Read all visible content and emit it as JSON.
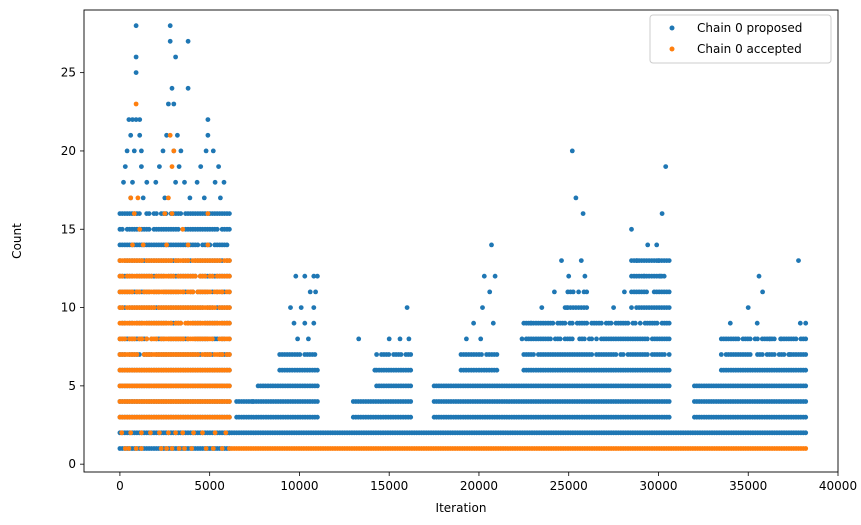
{
  "chart_data": {
    "type": "scatter",
    "xlabel": "Iteration",
    "ylabel": "Count",
    "xlim": [
      -2000,
      40000
    ],
    "ylim": [
      -0.5,
      29
    ],
    "x_ticks": [
      0,
      5000,
      10000,
      15000,
      20000,
      25000,
      30000,
      35000,
      40000
    ],
    "y_ticks": [
      0,
      5,
      10,
      15,
      20,
      25
    ],
    "grid": false,
    "legend_position": "top-right",
    "series": [
      {
        "name": "Chain 0 proposed",
        "color": "#1f77b4",
        "bands": [
          {
            "x_range": [
              0,
              6100
            ],
            "y_values": [
              1,
              2,
              3,
              4,
              5,
              6,
              7,
              8,
              9,
              10,
              11,
              12,
              13,
              14,
              15,
              16
            ]
          },
          {
            "x_range": [
              6100,
              38200
            ],
            "y_values": [
              2
            ]
          },
          {
            "x_range": [
              6500,
              11000
            ],
            "y_values": [
              3,
              4
            ]
          },
          {
            "x_range": [
              7700,
              11000
            ],
            "y_values": [
              5
            ]
          },
          {
            "x_range": [
              8900,
              11000
            ],
            "y_values": [
              6,
              7
            ]
          },
          {
            "x_range": [
              13000,
              16200
            ],
            "y_values": [
              3,
              4
            ]
          },
          {
            "x_range": [
              14300,
              16200
            ],
            "y_values": [
              5,
              6,
              7
            ]
          },
          {
            "x_range": [
              17500,
              30600
            ],
            "y_values": [
              3,
              4,
              5
            ]
          },
          {
            "x_range": [
              19000,
              21000
            ],
            "y_values": [
              6,
              7
            ]
          },
          {
            "x_range": [
              22500,
              30600
            ],
            "y_values": [
              6,
              7,
              8,
              9
            ]
          },
          {
            "x_range": [
              24800,
              26000
            ],
            "y_values": [
              10,
              11
            ]
          },
          {
            "x_range": [
              28500,
              30600
            ],
            "y_values": [
              10,
              11,
              12,
              13
            ]
          },
          {
            "x_range": [
              32000,
              38200
            ],
            "y_values": [
              3,
              4,
              5
            ]
          },
          {
            "x_range": [
              33500,
              38200
            ],
            "y_values": [
              6,
              7,
              8
            ]
          }
        ],
        "extra_points": [
          [
            900,
            28
          ],
          [
            2800,
            28
          ],
          [
            900,
            26
          ],
          [
            900,
            25
          ],
          [
            2800,
            27
          ],
          [
            3100,
            26
          ],
          [
            3800,
            27
          ],
          [
            3800,
            24
          ],
          [
            2900,
            24
          ],
          [
            3000,
            23
          ],
          [
            2700,
            23
          ],
          [
            500,
            22
          ],
          [
            700,
            22
          ],
          [
            900,
            22
          ],
          [
            1100,
            22
          ],
          [
            4900,
            22
          ],
          [
            2600,
            21
          ],
          [
            3200,
            21
          ],
          [
            4900,
            21
          ],
          [
            600,
            21
          ],
          [
            1100,
            21
          ],
          [
            400,
            20
          ],
          [
            800,
            20
          ],
          [
            1200,
            20
          ],
          [
            2400,
            20
          ],
          [
            3000,
            20
          ],
          [
            3400,
            20
          ],
          [
            4800,
            20
          ],
          [
            5200,
            20
          ],
          [
            300,
            19
          ],
          [
            1200,
            19
          ],
          [
            2200,
            19
          ],
          [
            3300,
            19
          ],
          [
            4500,
            19
          ],
          [
            5500,
            19
          ],
          [
            200,
            18
          ],
          [
            700,
            18
          ],
          [
            1500,
            18
          ],
          [
            2000,
            18
          ],
          [
            3100,
            18
          ],
          [
            3600,
            18
          ],
          [
            4300,
            18
          ],
          [
            5300,
            18
          ],
          [
            5800,
            18
          ],
          [
            600,
            17
          ],
          [
            1300,
            17
          ],
          [
            2500,
            17
          ],
          [
            3900,
            17
          ],
          [
            4700,
            17
          ],
          [
            5600,
            17
          ],
          [
            7400,
            4
          ],
          [
            9900,
            8
          ],
          [
            10500,
            8
          ],
          [
            9700,
            9
          ],
          [
            10300,
            9
          ],
          [
            10800,
            9
          ],
          [
            9500,
            10
          ],
          [
            10100,
            10
          ],
          [
            10800,
            10
          ],
          [
            10600,
            11
          ],
          [
            10900,
            11
          ],
          [
            9800,
            12
          ],
          [
            10300,
            12
          ],
          [
            10800,
            12
          ],
          [
            11000,
            12
          ],
          [
            13300,
            8
          ],
          [
            14200,
            6
          ],
          [
            15000,
            8
          ],
          [
            15600,
            8
          ],
          [
            16000,
            10
          ],
          [
            16100,
            8
          ],
          [
            19300,
            8
          ],
          [
            19700,
            9
          ],
          [
            20100,
            8
          ],
          [
            20200,
            10
          ],
          [
            20600,
            11
          ],
          [
            20900,
            12
          ],
          [
            20700,
            14
          ],
          [
            20300,
            12
          ],
          [
            20800,
            9
          ],
          [
            22400,
            8
          ],
          [
            22900,
            9
          ],
          [
            23500,
            10
          ],
          [
            24200,
            11
          ],
          [
            24600,
            13
          ],
          [
            25000,
            12
          ],
          [
            25200,
            20
          ],
          [
            25400,
            17
          ],
          [
            25800,
            16
          ],
          [
            25700,
            13
          ],
          [
            25900,
            12
          ],
          [
            24900,
            10
          ],
          [
            27500,
            10
          ],
          [
            28100,
            11
          ],
          [
            28500,
            15
          ],
          [
            28800,
            13
          ],
          [
            29400,
            14
          ],
          [
            30200,
            16
          ],
          [
            30400,
            19
          ],
          [
            30000,
            13
          ],
          [
            29200,
            12
          ],
          [
            30100,
            12
          ],
          [
            29900,
            14
          ],
          [
            34000,
            9
          ],
          [
            35000,
            10
          ],
          [
            35600,
            12
          ],
          [
            35800,
            11
          ],
          [
            35500,
            9
          ],
          [
            36200,
            8
          ],
          [
            37800,
            13
          ],
          [
            37900,
            9
          ],
          [
            38200,
            9
          ],
          [
            37300,
            7
          ],
          [
            36800,
            8
          ]
        ]
      },
      {
        "name": "Chain 0 accepted",
        "color": "#ff7f0e",
        "bands": [
          {
            "x_range": [
              0,
              6100
            ],
            "y_values": [
              3,
              4,
              5,
              6,
              7,
              8,
              9,
              10,
              11,
              12,
              13
            ]
          },
          {
            "x_range": [
              6100,
              38200
            ],
            "y_values": [
              1
            ]
          }
        ],
        "extra_points": [
          [
            300,
            1
          ],
          [
            500,
            1
          ],
          [
            900,
            1
          ],
          [
            1200,
            1
          ],
          [
            2300,
            1
          ],
          [
            2600,
            1
          ],
          [
            2900,
            1
          ],
          [
            3300,
            1
          ],
          [
            3600,
            1
          ],
          [
            4000,
            1
          ],
          [
            4800,
            1
          ],
          [
            5200,
            1
          ],
          [
            5700,
            1
          ],
          [
            100,
            2
          ],
          [
            600,
            2
          ],
          [
            1200,
            2
          ],
          [
            1700,
            2
          ],
          [
            2200,
            2
          ],
          [
            2700,
            2
          ],
          [
            3100,
            2
          ],
          [
            3500,
            2
          ],
          [
            4100,
            2
          ],
          [
            4600,
            2
          ],
          [
            5300,
            2
          ],
          [
            5900,
            2
          ],
          [
            900,
            23
          ],
          [
            2800,
            21
          ],
          [
            3000,
            20
          ],
          [
            2900,
            19
          ],
          [
            4900,
            16
          ],
          [
            600,
            17
          ],
          [
            800,
            16
          ],
          [
            1100,
            15
          ],
          [
            2500,
            16
          ],
          [
            3500,
            15
          ],
          [
            2900,
            16
          ],
          [
            700,
            14
          ],
          [
            1300,
            14
          ],
          [
            2600,
            14
          ],
          [
            3800,
            14
          ],
          [
            4900,
            14
          ],
          [
            2700,
            17
          ],
          [
            1000,
            17
          ]
        ]
      }
    ]
  }
}
